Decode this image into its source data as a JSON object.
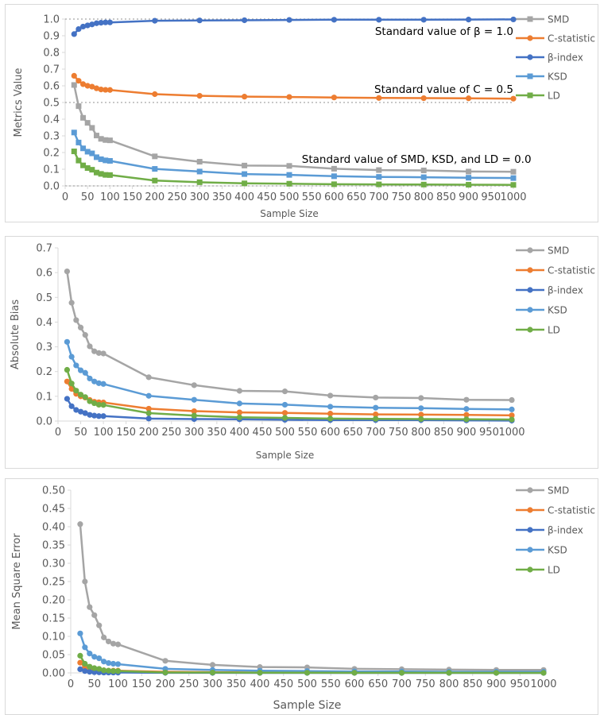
{
  "colors": {
    "SMD": "#A5A5A5",
    "C-statistic": "#ED7D31",
    "β-index": "#4472C4",
    "KSD": "#5B9BD5",
    "LD": "#70AD47"
  },
  "chart_data": [
    {
      "type": "line",
      "xlabel": "Sample Size",
      "ylabel": "Metrics Value",
      "xlim": [
        0,
        1000
      ],
      "ylim": [
        0,
        1.0
      ],
      "xticks": [
        "0",
        "50",
        "100",
        "150",
        "200",
        "250",
        "300",
        "350",
        "400",
        "450",
        "500",
        "550",
        "600",
        "650",
        "700",
        "750",
        "800",
        "850",
        "900",
        "950",
        "1000"
      ],
      "yticks": [
        "0.0",
        "0.1",
        "0.2",
        "0.3",
        "0.4",
        "0.5",
        "0.6",
        "0.7",
        "0.8",
        "0.9",
        "1.0"
      ],
      "grid": false,
      "legend": "right",
      "reference_lines": [
        1.0,
        0.5,
        0.0
      ],
      "annotations": [
        "Standard value of β = 1.0",
        "Standard value of C = 0.5",
        "Standard value of SMD, KSD, and LD = 0.0"
      ],
      "x": [
        20,
        30,
        40,
        50,
        60,
        70,
        80,
        90,
        100,
        200,
        300,
        400,
        500,
        600,
        700,
        800,
        900,
        1000
      ],
      "series": [
        {
          "name": "SMD",
          "marker": "square",
          "values": [
            0.605,
            0.478,
            0.408,
            0.378,
            0.348,
            0.302,
            0.282,
            0.275,
            0.273,
            0.177,
            0.145,
            0.122,
            0.12,
            0.103,
            0.095,
            0.093,
            0.086,
            0.085
          ]
        },
        {
          "name": "C-statistic",
          "marker": "circle",
          "values": [
            0.66,
            0.63,
            0.61,
            0.6,
            0.595,
            0.585,
            0.578,
            0.576,
            0.575,
            0.55,
            0.54,
            0.535,
            0.533,
            0.53,
            0.527,
            0.526,
            0.525,
            0.523
          ]
        },
        {
          "name": "β-index",
          "marker": "circle",
          "values": [
            0.91,
            0.94,
            0.955,
            0.962,
            0.968,
            0.975,
            0.978,
            0.98,
            0.98,
            0.99,
            0.992,
            0.993,
            0.995,
            0.996,
            0.996,
            0.996,
            0.997,
            0.998
          ]
        },
        {
          "name": "KSD",
          "marker": "square",
          "values": [
            0.32,
            0.26,
            0.225,
            0.205,
            0.195,
            0.172,
            0.16,
            0.153,
            0.15,
            0.102,
            0.086,
            0.071,
            0.066,
            0.058,
            0.054,
            0.052,
            0.049,
            0.047
          ]
        },
        {
          "name": "LD",
          "marker": "square",
          "values": [
            0.207,
            0.152,
            0.123,
            0.107,
            0.097,
            0.08,
            0.072,
            0.066,
            0.065,
            0.032,
            0.022,
            0.015,
            0.013,
            0.01,
            0.009,
            0.008,
            0.007,
            0.006
          ]
        }
      ]
    },
    {
      "type": "line",
      "xlabel": "Sample Size",
      "ylabel": "Absolute Bias",
      "xlim": [
        0,
        1000
      ],
      "ylim": [
        0,
        0.7
      ],
      "xticks": [
        "0",
        "50",
        "100",
        "150",
        "200",
        "250",
        "300",
        "350",
        "400",
        "450",
        "500",
        "550",
        "600",
        "650",
        "700",
        "750",
        "800",
        "850",
        "900",
        "950",
        "1000"
      ],
      "yticks": [
        "0.0",
        "0.1",
        "0.2",
        "0.3",
        "0.4",
        "0.5",
        "0.6",
        "0.7"
      ],
      "grid": false,
      "legend": "right",
      "x": [
        20,
        30,
        40,
        50,
        60,
        70,
        80,
        90,
        100,
        200,
        300,
        400,
        500,
        600,
        700,
        800,
        900,
        1000
      ],
      "series": [
        {
          "name": "SMD",
          "marker": "circle",
          "values": [
            0.605,
            0.478,
            0.408,
            0.378,
            0.348,
            0.302,
            0.282,
            0.275,
            0.273,
            0.177,
            0.145,
            0.122,
            0.12,
            0.103,
            0.095,
            0.093,
            0.086,
            0.085
          ]
        },
        {
          "name": "C-statistic",
          "marker": "circle",
          "values": [
            0.16,
            0.13,
            0.11,
            0.1,
            0.095,
            0.085,
            0.078,
            0.076,
            0.075,
            0.05,
            0.04,
            0.035,
            0.033,
            0.03,
            0.027,
            0.026,
            0.025,
            0.023
          ]
        },
        {
          "name": "β-index",
          "marker": "circle",
          "values": [
            0.09,
            0.06,
            0.045,
            0.038,
            0.032,
            0.025,
            0.022,
            0.02,
            0.02,
            0.01,
            0.008,
            0.007,
            0.005,
            0.004,
            0.004,
            0.004,
            0.003,
            0.002
          ]
        },
        {
          "name": "KSD",
          "marker": "circle",
          "values": [
            0.32,
            0.26,
            0.225,
            0.205,
            0.195,
            0.172,
            0.16,
            0.153,
            0.15,
            0.102,
            0.086,
            0.071,
            0.066,
            0.058,
            0.054,
            0.052,
            0.049,
            0.047
          ]
        },
        {
          "name": "LD",
          "marker": "circle",
          "values": [
            0.207,
            0.152,
            0.123,
            0.107,
            0.097,
            0.08,
            0.072,
            0.066,
            0.065,
            0.032,
            0.022,
            0.015,
            0.013,
            0.01,
            0.009,
            0.008,
            0.007,
            0.006
          ]
        }
      ]
    },
    {
      "type": "line",
      "xlabel": "Sample Size",
      "ylabel": "Mean Square Error",
      "xlim": [
        0,
        1000
      ],
      "ylim": [
        0,
        0.5
      ],
      "xticks": [
        "0",
        "50",
        "100",
        "150",
        "200",
        "250",
        "300",
        "350",
        "400",
        "450",
        "500",
        "550",
        "600",
        "650",
        "700",
        "750",
        "800",
        "850",
        "900",
        "950",
        "1000"
      ],
      "yticks": [
        "0.00",
        "0.05",
        "0.10",
        "0.15",
        "0.20",
        "0.25",
        "0.30",
        "0.35",
        "0.40",
        "0.45",
        "0.50"
      ],
      "grid": false,
      "legend": "right",
      "x": [
        20,
        30,
        40,
        50,
        60,
        70,
        80,
        90,
        100,
        200,
        300,
        400,
        500,
        600,
        700,
        800,
        900,
        1000
      ],
      "series": [
        {
          "name": "SMD",
          "marker": "circle",
          "values": [
            0.407,
            0.25,
            0.18,
            0.158,
            0.13,
            0.097,
            0.086,
            0.08,
            0.078,
            0.033,
            0.022,
            0.016,
            0.015,
            0.011,
            0.01,
            0.009,
            0.008,
            0.008
          ]
        },
        {
          "name": "C-statistic",
          "marker": "circle",
          "values": [
            0.028,
            0.017,
            0.012,
            0.01,
            0.009,
            0.007,
            0.006,
            0.006,
            0.006,
            0.003,
            0.002,
            0.001,
            0.001,
            0.001,
            0.001,
            0.001,
            0.001,
            0.001
          ]
        },
        {
          "name": "β-index",
          "marker": "circle",
          "values": [
            0.01,
            0.005,
            0.003,
            0.002,
            0.0015,
            0.001,
            0.001,
            0.001,
            0.001,
            0.0003,
            0.0002,
            0.0001,
            0.0001,
            0.0001,
            0.0,
            0.0,
            0.0,
            0.0
          ]
        },
        {
          "name": "KSD",
          "marker": "circle",
          "values": [
            0.108,
            0.07,
            0.053,
            0.044,
            0.04,
            0.031,
            0.027,
            0.025,
            0.024,
            0.011,
            0.008,
            0.006,
            0.005,
            0.004,
            0.004,
            0.003,
            0.003,
            0.003
          ]
        },
        {
          "name": "LD",
          "marker": "circle",
          "values": [
            0.047,
            0.025,
            0.017,
            0.013,
            0.011,
            0.007,
            0.006,
            0.005,
            0.005,
            0.001,
            0.001,
            0.0005,
            0.0004,
            0.0003,
            0.0002,
            0.0002,
            0.0001,
            0.0001
          ]
        }
      ]
    }
  ]
}
